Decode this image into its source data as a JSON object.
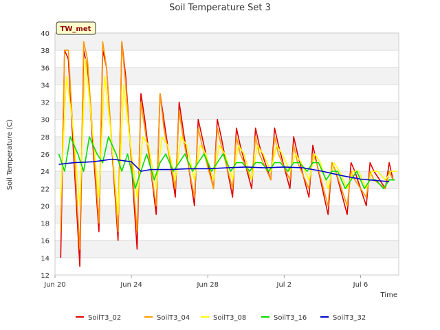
{
  "chart_data": {
    "type": "line",
    "title": "Soil Temperature Set 3",
    "badge": "TW_met",
    "xlabel": "Time",
    "ylabel": "Soil Temperature (C)",
    "ylim": [
      12,
      40
    ],
    "yticks": [
      12,
      14,
      16,
      18,
      20,
      22,
      24,
      26,
      28,
      30,
      32,
      34,
      36,
      38,
      40
    ],
    "xlim": [
      "Jun 20",
      "Jul 8"
    ],
    "xticks": [
      {
        "label": "Jun 20",
        "day": 0
      },
      {
        "label": "Jun 24",
        "day": 4
      },
      {
        "label": "Jun 28",
        "day": 8
      },
      {
        "label": "Jul 2",
        "day": 12
      },
      {
        "label": "Jul 6",
        "day": 16
      }
    ],
    "grid": true,
    "legend_position": "bottom",
    "series": [
      {
        "name": "SoilT3_02",
        "color": "#e00000",
        "days": [
          0.3,
          0.5,
          0.7,
          1.3,
          1.5,
          1.7,
          2.3,
          2.5,
          2.7,
          3.3,
          3.5,
          3.7,
          4.3,
          4.5,
          4.7,
          5.3,
          5.5,
          5.7,
          6.3,
          6.5,
          6.7,
          7.3,
          7.5,
          7.7,
          8.3,
          8.5,
          8.7,
          9.3,
          9.5,
          9.7,
          10.3,
          10.5,
          10.7,
          11.3,
          11.5,
          11.7,
          12.3,
          12.5,
          12.7,
          13.3,
          13.5,
          13.7,
          14.3,
          14.5,
          14.7,
          15.3,
          15.5,
          15.7,
          16.3,
          16.5,
          16.7,
          17.3,
          17.5,
          17.7
        ],
        "values": [
          14,
          38,
          37,
          13,
          38,
          36,
          17,
          38,
          36,
          16,
          39,
          35,
          15,
          33,
          30,
          19,
          33,
          30,
          21,
          32,
          29,
          20,
          30,
          28,
          22,
          30,
          28,
          21,
          29,
          27,
          22,
          29,
          27,
          23,
          29,
          27,
          22,
          28,
          26,
          21,
          27,
          25,
          19,
          25,
          24,
          19,
          25,
          24,
          20,
          25,
          24,
          22,
          25,
          23
        ]
      },
      {
        "name": "SoilT3_04",
        "color": "#ff9900",
        "days": [
          0.3,
          0.5,
          0.7,
          1.3,
          1.5,
          1.7,
          2.3,
          2.5,
          2.7,
          3.3,
          3.5,
          3.7,
          4.3,
          4.5,
          4.7,
          5.3,
          5.5,
          5.7,
          6.3,
          6.5,
          6.7,
          7.3,
          7.5,
          7.7,
          8.3,
          8.5,
          8.7,
          9.3,
          9.5,
          9.7,
          10.3,
          10.5,
          10.7,
          11.3,
          11.5,
          11.7,
          12.3,
          12.5,
          12.7,
          13.3,
          13.5,
          13.7,
          14.3,
          14.5,
          14.7,
          15.3,
          15.5,
          15.7,
          16.3,
          16.5,
          16.7,
          17.3,
          17.5,
          17.7
        ],
        "values": [
          17,
          38,
          38,
          15,
          39,
          37,
          18,
          39,
          36,
          17,
          39,
          34,
          17,
          32,
          29,
          20,
          33,
          29,
          22,
          31,
          28,
          21,
          29,
          27,
          22,
          29,
          27,
          22,
          28,
          26,
          23,
          28,
          26,
          23,
          28,
          26,
          23,
          27,
          25,
          22,
          26,
          25,
          20,
          25,
          24,
          20,
          24,
          23,
          21,
          24,
          23,
          22,
          24,
          23
        ]
      },
      {
        "name": "SoilT3_08",
        "color": "#ffff00",
        "days": [
          0.3,
          0.6,
          0.9,
          1.3,
          1.6,
          1.9,
          2.3,
          2.6,
          2.9,
          3.3,
          3.6,
          3.9,
          4.3,
          4.6,
          4.9,
          5.3,
          5.6,
          5.9,
          6.3,
          6.6,
          6.9,
          7.3,
          7.6,
          7.9,
          8.3,
          8.6,
          8.9,
          9.3,
          9.6,
          9.9,
          10.3,
          10.6,
          10.9,
          11.3,
          11.6,
          11.9,
          12.3,
          12.6,
          12.9,
          13.3,
          13.6,
          13.9,
          14.3,
          14.6,
          14.9,
          15.3,
          15.6,
          15.9,
          16.3,
          16.6,
          16.9,
          17.3,
          17.6,
          17.9
        ],
        "values": [
          21,
          35,
          30,
          20,
          37,
          30,
          21,
          35,
          29,
          19,
          34,
          28,
          21,
          28,
          27,
          22,
          28,
          27,
          23,
          28,
          27,
          23,
          27,
          26,
          23,
          27,
          26,
          23,
          27,
          26,
          23,
          27,
          26,
          24,
          27,
          26,
          24,
          26,
          25,
          23,
          26,
          25,
          22,
          25,
          24,
          22,
          24,
          24,
          22,
          24,
          24,
          23,
          24,
          24
        ]
      },
      {
        "name": "SoilT3_16",
        "color": "#00dd00",
        "days": [
          0.2,
          0.5,
          0.8,
          1.2,
          1.5,
          1.8,
          2.2,
          2.5,
          2.8,
          3.2,
          3.5,
          3.8,
          4.2,
          4.5,
          4.8,
          5.2,
          5.5,
          5.8,
          6.2,
          6.5,
          6.8,
          7.2,
          7.5,
          7.8,
          8.2,
          8.5,
          8.8,
          9.2,
          9.5,
          9.8,
          10.2,
          10.5,
          10.8,
          11.2,
          11.5,
          11.8,
          12.2,
          12.5,
          12.8,
          13.2,
          13.5,
          13.8,
          14.2,
          14.5,
          14.8,
          15.2,
          15.5,
          15.8,
          16.2,
          16.5,
          16.8,
          17.2,
          17.5,
          17.8
        ],
        "values": [
          26,
          24,
          28,
          26,
          24,
          28,
          26,
          25,
          28,
          26,
          24,
          26,
          22,
          24,
          26,
          23,
          25,
          26,
          24,
          25,
          26,
          24,
          25,
          26,
          24,
          25,
          26,
          24,
          25,
          25,
          24,
          25,
          25,
          24,
          25,
          25,
          24,
          25,
          25,
          24,
          25,
          25,
          23,
          24,
          24,
          22,
          23,
          24,
          22,
          23,
          23,
          22,
          23,
          23
        ]
      },
      {
        "name": "SoilT3_32",
        "color": "#0000cc",
        "days": [
          0.2,
          1.0,
          2.0,
          3.0,
          4.0,
          4.5,
          5.0,
          6.0,
          7.0,
          8.0,
          9.0,
          10.0,
          11.0,
          12.0,
          13.0,
          14.0,
          15.0,
          16.0,
          17.0,
          17.5
        ],
        "values": [
          24.8,
          25.0,
          25.1,
          25.4,
          25.1,
          24.0,
          24.2,
          24.2,
          24.3,
          24.3,
          24.4,
          24.5,
          24.4,
          24.5,
          24.4,
          24.0,
          23.5,
          23.1,
          22.9,
          22.8
        ]
      }
    ]
  }
}
